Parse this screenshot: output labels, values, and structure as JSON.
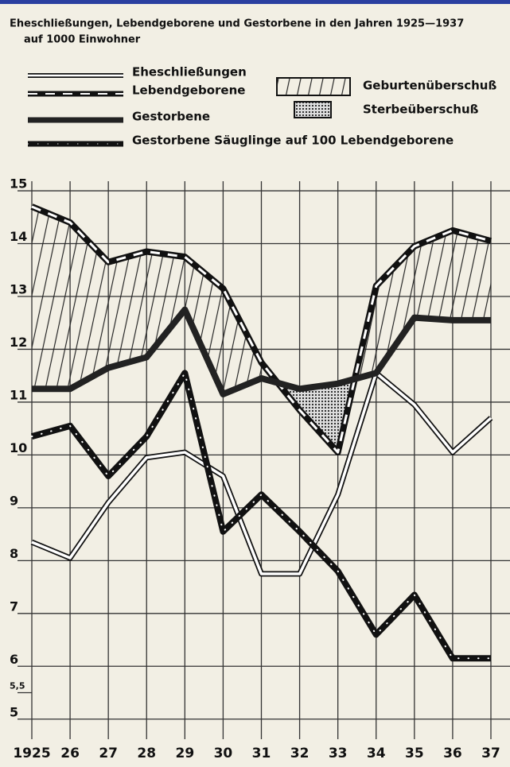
{
  "chart_data": {
    "type": "line",
    "title": "Eheschließungen, Lebendgeborene und Gestorbene in den Jahren 1925—1937",
    "subtitle": "auf 1000 Einwohner",
    "categories": [
      "1925",
      "26",
      "27",
      "28",
      "29",
      "30",
      "31",
      "32",
      "33",
      "34",
      "35",
      "36",
      "37"
    ],
    "series": [
      {
        "name": "Eheschließungen",
        "color": "#ffffff",
        "style": "double",
        "values": [
          8.35,
          8.05,
          9.1,
          9.95,
          10.05,
          9.6,
          7.75,
          7.75,
          9.25,
          11.55,
          10.95,
          10.05,
          10.7
        ]
      },
      {
        "name": "Lebendgeborene",
        "color": "#111111",
        "style": "dashed",
        "values": [
          14.7,
          14.4,
          13.65,
          13.85,
          13.75,
          13.15,
          11.75,
          10.85,
          10.05,
          13.2,
          13.95,
          14.25,
          14.05
        ]
      },
      {
        "name": "Gestorbene",
        "color": "#222222",
        "style": "solid",
        "values": [
          11.25,
          11.25,
          11.65,
          11.85,
          12.75,
          11.15,
          11.45,
          11.25,
          11.35,
          11.55,
          12.6,
          12.55,
          12.55
        ]
      },
      {
        "name": "Gestorbene Säuglinge auf 100 Lebendgeborene",
        "color": "#111111",
        "style": "dotted",
        "values": [
          10.35,
          10.55,
          9.6,
          10.35,
          11.55,
          8.55,
          9.25,
          8.55,
          7.8,
          6.6,
          7.35,
          6.15,
          6.15
        ]
      }
    ],
    "areas": [
      {
        "name": "Geburtenüberschuß"
      },
      {
        "name": "Sterbeüberschuß"
      }
    ],
    "ylim": [
      4.9,
      15.1
    ],
    "yticks": [
      5,
      {
        "value": 5.5,
        "label": "5,5"
      },
      6,
      7,
      8,
      9,
      10,
      11,
      12,
      13,
      14,
      15
    ],
    "grid": true
  }
}
